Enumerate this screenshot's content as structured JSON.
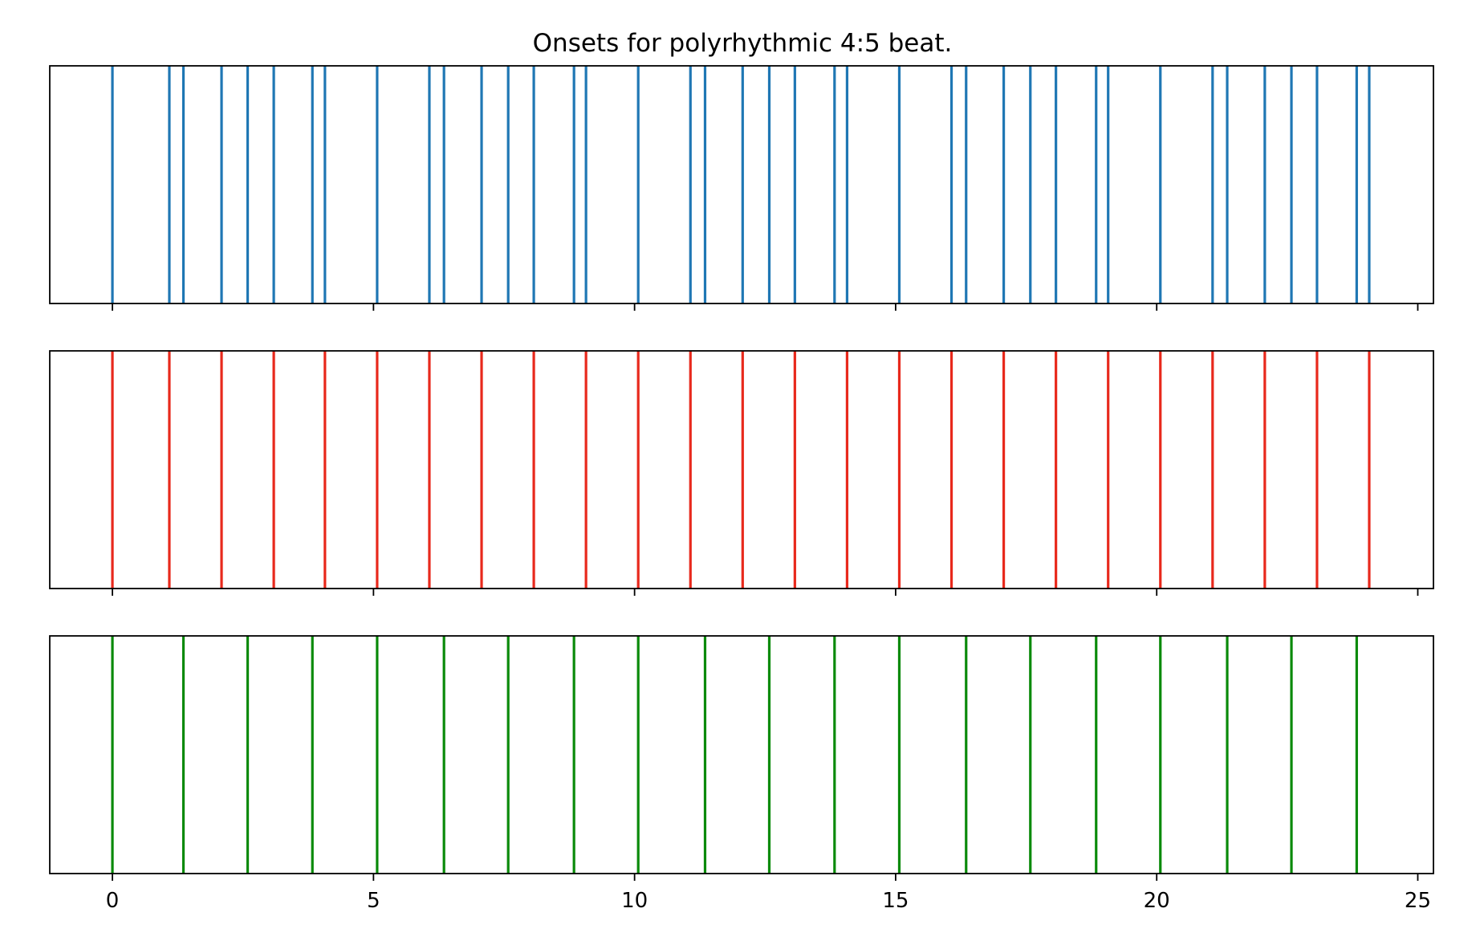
{
  "chart_data": {
    "type": "event-raster",
    "title": "Onsets for polyrhythmic 4:5 beat.",
    "xlabel": "",
    "ylabel": "",
    "xlim": [
      -1.2,
      25.3
    ],
    "x_ticks": [
      0,
      5,
      10,
      15,
      20,
      25
    ],
    "x_tick_labels": [
      "0",
      "5",
      "10",
      "15",
      "20",
      "25"
    ],
    "grid": false,
    "legend": "none",
    "shared_x": true,
    "panels": [
      {
        "color": "#1f77b4",
        "onsets": [
          0.0,
          1.09,
          1.36,
          2.09,
          2.59,
          3.09,
          3.83,
          4.07,
          5.07,
          6.07,
          6.35,
          7.07,
          7.58,
          8.07,
          8.84,
          9.07,
          10.07,
          11.07,
          11.35,
          12.07,
          12.58,
          13.07,
          13.83,
          14.07,
          15.07,
          16.07,
          16.35,
          17.07,
          17.58,
          18.07,
          18.84,
          19.07,
          20.07,
          21.07,
          21.35,
          22.07,
          22.58,
          23.07,
          23.83,
          24.07
        ]
      },
      {
        "color": "#e8291c",
        "onsets": [
          0.0,
          1.09,
          2.09,
          3.09,
          4.07,
          5.07,
          6.07,
          7.07,
          8.07,
          9.07,
          10.07,
          11.07,
          12.07,
          13.07,
          14.07,
          15.07,
          16.07,
          17.07,
          18.07,
          19.07,
          20.07,
          21.07,
          22.07,
          23.07,
          24.07
        ]
      },
      {
        "color": "#0a8a0a",
        "onsets": [
          0.0,
          1.36,
          2.59,
          3.83,
          5.07,
          6.35,
          7.58,
          8.84,
          10.07,
          11.35,
          12.58,
          13.83,
          15.07,
          16.35,
          17.58,
          18.84,
          20.07,
          21.35,
          22.58,
          23.83
        ]
      }
    ]
  }
}
